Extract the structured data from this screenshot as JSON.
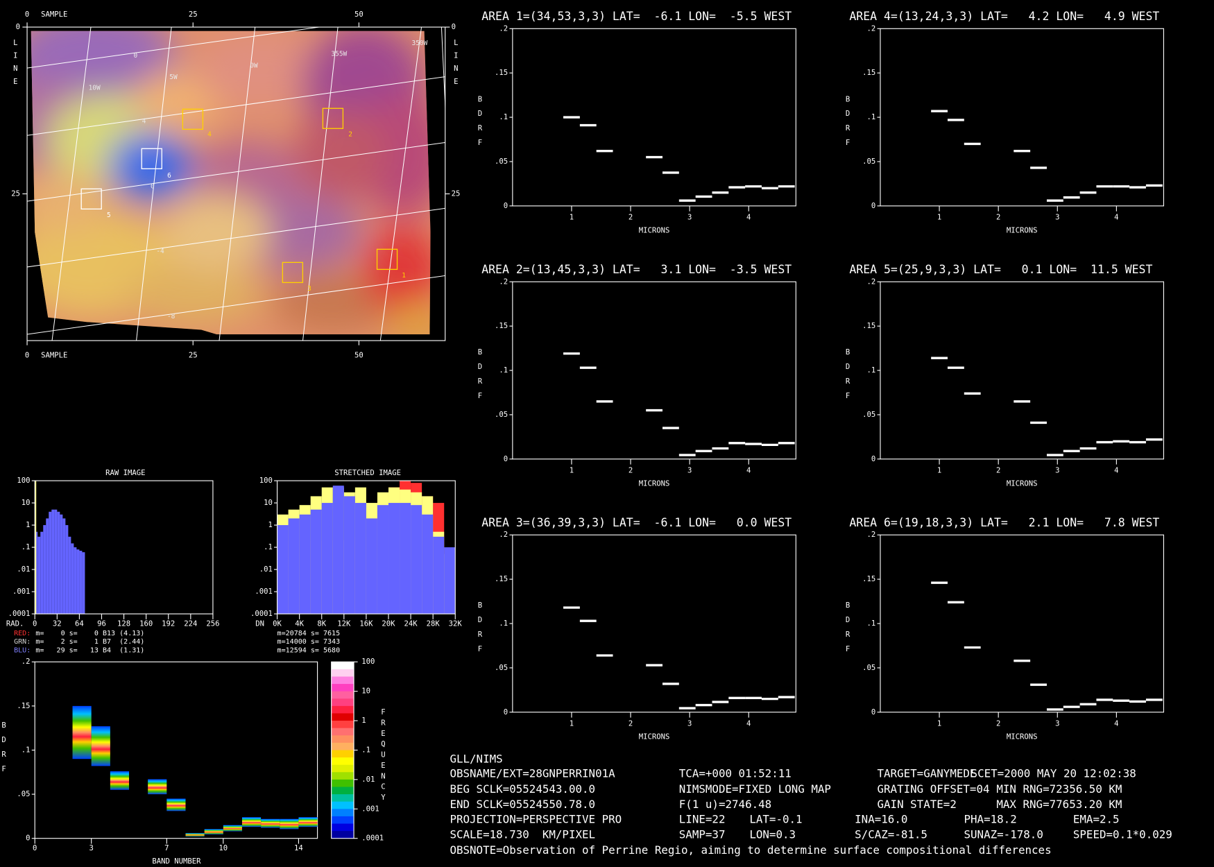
{
  "chart_data": [
    {
      "type": "spectrum",
      "title": "AREA 1=(34,53,3,3) LAT=  -6.1 LON=  -5.5 WEST",
      "xlabel": "MICRONS",
      "ylabel": "BDRF",
      "x": [
        1.0,
        1.28,
        1.56,
        2.4,
        2.68,
        2.96,
        3.24,
        3.52,
        3.8,
        4.08,
        4.36,
        4.64
      ],
      "values": [
        0.1,
        0.091,
        0.062,
        0.055,
        0.0375,
        0.006,
        0.0105,
        0.015,
        0.021,
        0.022,
        0.02,
        0.022
      ],
      "xlim": [
        0,
        4.8
      ],
      "ylim": [
        0,
        0.2
      ],
      "xticks": [
        1,
        2,
        3,
        4
      ],
      "yticks": [
        0,
        {
          "value": 0.05,
          "label": ".05"
        },
        {
          "value": 0.1,
          "label": ".1"
        },
        {
          "value": 0.15,
          "label": ".15"
        },
        {
          "value": 0.2,
          "label": ".2"
        }
      ]
    },
    {
      "type": "spectrum",
      "title": "AREA 2=(13,45,3,3) LAT=   3.1 LON=  -3.5 WEST",
      "xlabel": "MICRONS",
      "ylabel": "BDRF",
      "x": [
        1.0,
        1.28,
        1.56,
        2.4,
        2.68,
        2.96,
        3.24,
        3.52,
        3.8,
        4.08,
        4.36,
        4.64
      ],
      "values": [
        0.119,
        0.103,
        0.065,
        0.055,
        0.035,
        0.0045,
        0.009,
        0.012,
        0.018,
        0.017,
        0.016,
        0.018
      ],
      "xlim": [
        0,
        4.8
      ],
      "ylim": [
        0,
        0.2
      ],
      "xticks": [
        1,
        2,
        3,
        4
      ],
      "yticks": [
        0,
        {
          "value": 0.05,
          "label": ".05"
        },
        {
          "value": 0.1,
          "label": ".1"
        },
        {
          "value": 0.15,
          "label": ".15"
        },
        {
          "value": 0.2,
          "label": ".2"
        }
      ]
    },
    {
      "type": "spectrum",
      "title": "AREA 3=(36,39,3,3) LAT=  -6.1 LON=   0.0 WEST",
      "xlabel": "MICRONS",
      "ylabel": "BDRF",
      "x": [
        1.0,
        1.28,
        1.56,
        2.4,
        2.68,
        2.96,
        3.24,
        3.52,
        3.8,
        4.08,
        4.36,
        4.64
      ],
      "values": [
        0.118,
        0.103,
        0.064,
        0.053,
        0.032,
        0.0045,
        0.008,
        0.0115,
        0.016,
        0.016,
        0.015,
        0.017
      ],
      "xlim": [
        0,
        4.8
      ],
      "ylim": [
        0,
        0.2
      ],
      "xticks": [
        1,
        2,
        3,
        4
      ],
      "yticks": [
        0,
        {
          "value": 0.05,
          "label": ".05"
        },
        {
          "value": 0.1,
          "label": ".1"
        },
        {
          "value": 0.15,
          "label": ".15"
        },
        {
          "value": 0.2,
          "label": ".2"
        }
      ]
    },
    {
      "type": "spectrum",
      "title": "AREA 4=(13,24,3,3) LAT=   4.2 LON=   4.9 WEST",
      "xlabel": "MICRONS",
      "ylabel": "BDRF",
      "x": [
        1.0,
        1.28,
        1.56,
        2.4,
        2.68,
        2.96,
        3.24,
        3.52,
        3.8,
        4.08,
        4.36,
        4.64
      ],
      "values": [
        0.107,
        0.097,
        0.07,
        0.062,
        0.043,
        0.006,
        0.0095,
        0.015,
        0.022,
        0.022,
        0.021,
        0.023
      ],
      "xlim": [
        0,
        4.8
      ],
      "ylim": [
        0,
        0.2
      ],
      "xticks": [
        1,
        2,
        3,
        4
      ],
      "yticks": [
        0,
        {
          "value": 0.05,
          "label": ".05"
        },
        {
          "value": 0.1,
          "label": ".1"
        },
        {
          "value": 0.15,
          "label": ".15"
        },
        {
          "value": 0.2,
          "label": ".2"
        }
      ]
    },
    {
      "type": "spectrum",
      "title": "AREA 5=(25,9,3,3) LAT=   0.1 LON=  11.5 WEST",
      "xlabel": "MICRONS",
      "ylabel": "BDRF",
      "x": [
        1.0,
        1.28,
        1.56,
        2.4,
        2.68,
        2.96,
        3.24,
        3.52,
        3.8,
        4.08,
        4.36,
        4.64
      ],
      "values": [
        0.114,
        0.103,
        0.074,
        0.065,
        0.041,
        0.0045,
        0.009,
        0.012,
        0.019,
        0.02,
        0.019,
        0.022
      ],
      "xlim": [
        0,
        4.8
      ],
      "ylim": [
        0,
        0.2
      ],
      "xticks": [
        1,
        2,
        3,
        4
      ],
      "yticks": [
        0,
        {
          "value": 0.05,
          "label": ".05"
        },
        {
          "value": 0.1,
          "label": ".1"
        },
        {
          "value": 0.15,
          "label": ".15"
        },
        {
          "value": 0.2,
          "label": ".2"
        }
      ]
    },
    {
      "type": "spectrum",
      "title": "AREA 6=(19,18,3,3) LAT=   2.1 LON=   7.8 WEST",
      "xlabel": "MICRONS",
      "ylabel": "BDRF",
      "x": [
        1.0,
        1.28,
        1.56,
        2.4,
        2.68,
        2.96,
        3.24,
        3.52,
        3.8,
        4.08,
        4.36,
        4.64
      ],
      "values": [
        0.146,
        0.124,
        0.073,
        0.058,
        0.031,
        0.003,
        0.006,
        0.009,
        0.014,
        0.013,
        0.012,
        0.014
      ],
      "xlim": [
        0,
        4.8
      ],
      "ylim": [
        0,
        0.2
      ],
      "xticks": [
        1,
        2,
        3,
        4
      ],
      "yticks": [
        0,
        {
          "value": 0.05,
          "label": ".05"
        },
        {
          "value": 0.1,
          "label": ".1"
        },
        {
          "value": 0.15,
          "label": ".15"
        },
        {
          "value": 0.2,
          "label": ".2"
        }
      ]
    },
    {
      "type": "heatmap",
      "xlabel": "BAND NUMBER",
      "ylabel": "BDRF",
      "x": [
        2,
        3,
        4,
        6,
        7,
        8,
        9,
        10,
        11,
        12,
        13,
        14
      ],
      "low": [
        0.09,
        0.082,
        0.055,
        0.05,
        0.031,
        0.002,
        0.0045,
        0.008,
        0.013,
        0.012,
        0.0105,
        0.013
      ],
      "high": [
        0.15,
        0.127,
        0.076,
        0.067,
        0.045,
        0.006,
        0.0105,
        0.015,
        0.024,
        0.022,
        0.022,
        0.024
      ],
      "xlim": [
        0,
        15
      ],
      "ylim": [
        0,
        0.2
      ],
      "xticks": [
        0,
        3,
        7,
        10,
        14
      ],
      "yticks": [
        0,
        {
          "value": 0.05,
          "label": ".05"
        },
        {
          "value": 0.1,
          "label": ".1"
        },
        {
          "value": 0.15,
          "label": ".15"
        },
        {
          "value": 0.2,
          "label": ".2"
        }
      ],
      "colorbar": {
        "label": "FREQUENCY",
        "scale": "log",
        "lim": [
          0.0001,
          100
        ],
        "ticks": [
          {
            "value": 0.0001,
            "label": ".0001"
          },
          {
            "value": 0.001,
            "label": ".001"
          },
          {
            "value": 0.01,
            "label": ".01"
          },
          {
            "value": 0.1,
            "label": ".1"
          },
          1,
          10,
          100
        ],
        "colors": [
          "#ffffff",
          "#ffd0f0",
          "#ff80e0",
          "#ff40c0",
          "#ff60a0",
          "#ff4080",
          "#ff2040",
          "#e00000",
          "#ff4040",
          "#ff7070",
          "#ff9060",
          "#ffb060",
          "#ffd000",
          "#ffff00",
          "#e0f000",
          "#a0e000",
          "#40c000",
          "#00b040",
          "#00c0a0",
          "#00c0ff",
          "#0080ff",
          "#0040ff",
          "#0000e0",
          "#0000a0"
        ]
      }
    },
    {
      "type": "histogram",
      "title": "RAW IMAGE",
      "xlabel": "RAD.",
      "xlim": [
        0,
        256
      ],
      "xticks": [
        0,
        32,
        64,
        96,
        128,
        160,
        192,
        224,
        256
      ],
      "ylim": [
        0.0001,
        100
      ],
      "yscale": "log",
      "yticks": [
        {
          "value": 0.0001,
          "label": ".0001"
        },
        {
          "value": 0.001,
          "label": ".001"
        },
        {
          "value": 0.01,
          "label": ".01"
        },
        {
          "value": 0.1,
          "label": ".1"
        },
        1,
        10,
        100
      ],
      "series": [
        {
          "color": "#6464ff",
          "bins": [
            0,
            4,
            8,
            12,
            16,
            20,
            24,
            28,
            32,
            36,
            40,
            44,
            48,
            52,
            56,
            60,
            64,
            68,
            72
          ],
          "values": [
            0.5,
            0.3,
            0.5,
            1,
            2,
            4,
            5,
            5,
            4,
            3,
            2,
            1,
            0.3,
            0.15,
            0.1,
            0.08,
            0.07,
            0.06
          ]
        },
        {
          "color": "#ffff80",
          "bins": [
            0,
            2
          ],
          "values": [
            100
          ]
        }
      ],
      "stats": [
        {
          "name": "RED:",
          "color": "#ff3030",
          "text": "m=    0 s=    0 B13 (4.13)"
        },
        {
          "name": "GRN:",
          "color": "#d0d0d0",
          "text": "m=    2 s=    1 B7  (2.44)"
        },
        {
          "name": "BLU:",
          "color": "#8080ff",
          "text": "m=   29 s=   13 B4  (1.31)"
        }
      ]
    },
    {
      "type": "histogram",
      "title": "STRETCHED IMAGE",
      "xlabel": "DN",
      "xlim": [
        0,
        32000
      ],
      "xticks": [
        {
          "value": 0,
          "label": "0K"
        },
        {
          "value": 4000,
          "label": "4K"
        },
        {
          "value": 8000,
          "label": "8K"
        },
        {
          "value": 12000,
          "label": "12K"
        },
        {
          "value": 16000,
          "label": "16K"
        },
        {
          "value": 20000,
          "label": "20K"
        },
        {
          "value": 24000,
          "label": "24K"
        },
        {
          "value": 28000,
          "label": "28K"
        },
        {
          "value": 32000,
          "label": "32K"
        }
      ],
      "ylim": [
        0.0001,
        100
      ],
      "yscale": "log",
      "yticks": [
        {
          "value": 0.0001,
          "label": ".0001"
        },
        {
          "value": 0.001,
          "label": ".001"
        },
        {
          "value": 0.01,
          "label": ".01"
        },
        {
          "value": 0.1,
          "label": ".1"
        },
        1,
        10,
        100
      ],
      "series": [
        {
          "color": "#ff3030",
          "bins": [
            0,
            2000,
            4000,
            6000,
            8000,
            10000,
            12000,
            14000,
            16000,
            18000,
            20000,
            22000,
            24000,
            26000,
            28000,
            30000,
            32000
          ],
          "values": [
            0.2,
            0.2,
            0.2,
            0.2,
            0.2,
            0.2,
            0.2,
            0.3,
            5,
            20,
            50,
            100,
            80,
            20,
            10,
            0.05
          ]
        },
        {
          "color": "#ffff80",
          "bins": [
            0,
            2000,
            4000,
            6000,
            8000,
            10000,
            12000,
            14000,
            16000,
            18000,
            20000,
            22000,
            24000,
            26000,
            28000,
            30000,
            32000
          ],
          "values": [
            3,
            5,
            8,
            20,
            50,
            50,
            30,
            50,
            10,
            30,
            50,
            40,
            30,
            20,
            0.5,
            0.05
          ]
        },
        {
          "color": "#6464ff",
          "bins": [
            0,
            2000,
            4000,
            6000,
            8000,
            10000,
            12000,
            14000,
            16000,
            18000,
            20000,
            22000,
            24000,
            26000,
            28000,
            30000,
            32000
          ],
          "values": [
            1,
            2,
            3,
            5,
            10,
            60,
            20,
            10,
            2,
            8,
            10,
            10,
            8,
            3,
            0.3,
            0.1
          ]
        }
      ],
      "stats": [
        {
          "text": "m=20784 s= 7615"
        },
        {
          "text": "m=14000 s= 7343"
        },
        {
          "text": "m=12594 s= 5680"
        }
      ]
    }
  ],
  "image_panel": {
    "xlabel": "SAMPLE",
    "ylabel": "LINE",
    "xlim": [
      0,
      63
    ],
    "ylim": [
      0,
      47
    ],
    "xticks": [
      0,
      25,
      50
    ],
    "yticks": [
      0,
      25
    ],
    "grid_labels": [
      "0",
      "5W",
      "0W",
      "355W",
      "350W",
      "10W",
      "4",
      "0",
      "-4",
      "-8"
    ],
    "area_labels": [
      "1",
      "2",
      "3",
      "4",
      "5",
      "6"
    ]
  },
  "info": {
    "lines": [
      [
        "GLL/NIMS"
      ],
      [
        "OBSNAME/EXT=28GNPERRIN01A",
        "TCA=+000 01:52:11",
        "TARGET=GANYMEDE",
        "SCET=2000 MAY 20 12:02:38"
      ],
      [
        "BEG SCLK=05524543.00.0",
        "NIMSMODE=FIXED LONG MAP",
        "GRATING OFFSET=04",
        "MIN RNG=72356.50 KM"
      ],
      [
        "END SCLK=05524550.78.0",
        "F(1 u)=2746.48",
        "GAIN STATE=2",
        "MAX RNG=77653.20 KM"
      ],
      [
        "PROJECTION=PERSPECTIVE PRO",
        "LINE=22",
        "LAT=-0.1",
        "INA=16.0",
        "PHA=18.2",
        "EMA=2.5"
      ],
      [
        "SCALE=18.730  KM/PIXEL",
        "SAMP=37",
        "LON=0.3",
        "S/CAZ=-81.5",
        "SUNAZ=-178.0",
        "SPEED=0.1*0.029"
      ],
      [
        "OBSNOTE=Observation of Perrine Regio, aiming to determine surface compositional differences"
      ]
    ]
  }
}
